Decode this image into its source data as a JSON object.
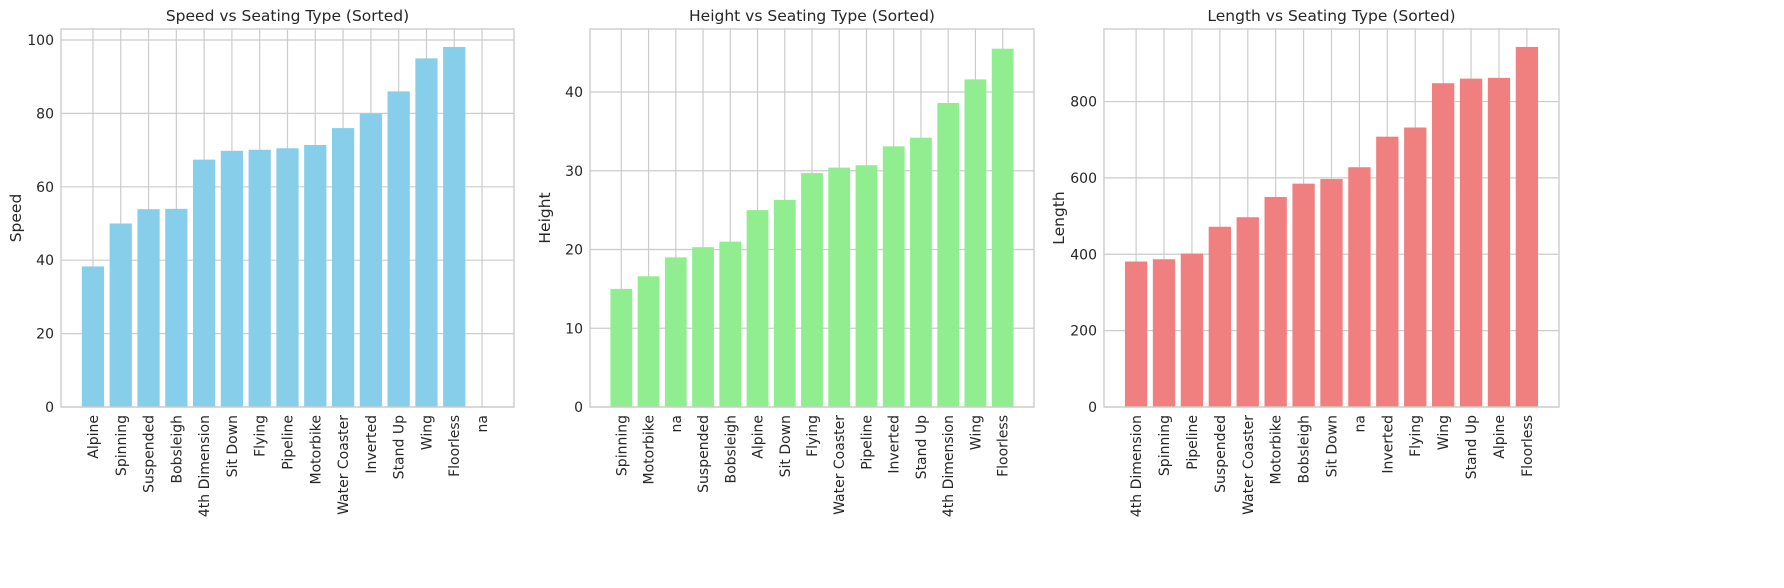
{
  "chart_data": [
    {
      "type": "bar",
      "title": "Speed vs Seating Type (Sorted)",
      "xlabel": "",
      "ylabel": "Speed",
      "color": "#87ceeb",
      "ylim": [
        0,
        103
      ],
      "yticks": [
        0,
        20,
        40,
        60,
        80,
        100
      ],
      "grid": true,
      "categories": [
        "Alpine",
        "Spinning",
        "Suspended",
        "Bobsleigh",
        "4th Dimension",
        "Sit Down",
        "Flying",
        "Pipeline",
        "Motorbike",
        "Water Coaster",
        "Inverted",
        "Stand Up",
        "Wing",
        "Floorless",
        "na"
      ],
      "values": [
        38.3,
        50.0,
        53.9,
        54.0,
        67.4,
        69.8,
        70.1,
        70.5,
        71.4,
        76.0,
        80.0,
        86.0,
        95.0,
        98.1,
        0
      ]
    },
    {
      "type": "bar",
      "title": "Height vs Seating Type (Sorted)",
      "xlabel": "",
      "ylabel": "Height",
      "color": "#90ee90",
      "ylim": [
        0,
        48
      ],
      "yticks": [
        0,
        10,
        20,
        30,
        40
      ],
      "grid": true,
      "categories": [
        "Spinning",
        "Motorbike",
        "na",
        "Suspended",
        "Bobsleigh",
        "Alpine",
        "Sit Down",
        "Flying",
        "Water Coaster",
        "Pipeline",
        "Inverted",
        "Stand Up",
        "4th Dimension",
        "Wing",
        "Floorless"
      ],
      "values": [
        15.0,
        16.6,
        19.0,
        20.3,
        21.0,
        25.0,
        26.3,
        29.7,
        30.4,
        30.7,
        33.1,
        34.2,
        38.6,
        41.6,
        45.5
      ]
    },
    {
      "type": "bar",
      "title": "Length vs Seating Type (Sorted)",
      "xlabel": "",
      "ylabel": "Length",
      "color": "#f08080",
      "ylim": [
        0,
        990
      ],
      "yticks": [
        0,
        200,
        400,
        600,
        800
      ],
      "grid": true,
      "categories": [
        "4th Dimension",
        "Spinning",
        "Pipeline",
        "Suspended",
        "Water Coaster",
        "Motorbike",
        "Bobsleigh",
        "Sit Down",
        "na",
        "Inverted",
        "Flying",
        "Wing",
        "Stand Up",
        "Alpine",
        "Floorless"
      ],
      "values": [
        381,
        387,
        402,
        472,
        497,
        550,
        585,
        597,
        628,
        708,
        732,
        848,
        860,
        862,
        943
      ]
    }
  ]
}
